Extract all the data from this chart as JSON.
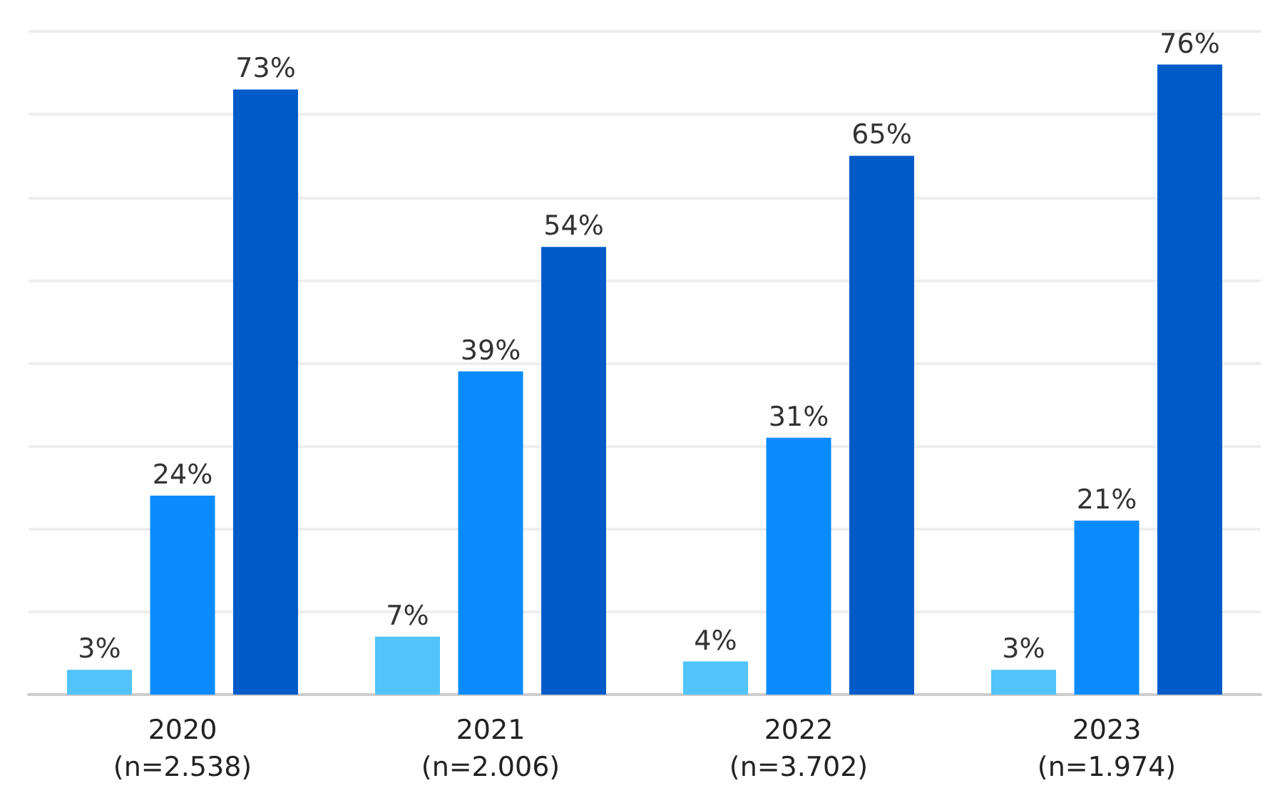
{
  "chart_data": {
    "type": "bar",
    "categories": [
      "2020\n(n=2.538)",
      "2021\n(n=2.006)",
      "2022\n(n=3.702)",
      "2023\n(n=1.974)"
    ],
    "series": [
      {
        "color": "#52c3fb",
        "values": [
          3,
          7,
          4,
          3
        ],
        "value_labels": [
          "3%",
          "7%",
          "4%",
          "3%"
        ]
      },
      {
        "color": "#0a8cff",
        "values": [
          24,
          39,
          31,
          21
        ],
        "value_labels": [
          "24%",
          "39%",
          "31%",
          "21%"
        ]
      },
      {
        "color": "#005bc8",
        "values": [
          73,
          54,
          65,
          76
        ],
        "value_labels": [
          "73%",
          "54%",
          "65%",
          "76%"
        ]
      }
    ],
    "grid": "y",
    "tick_labels": "x"
  }
}
